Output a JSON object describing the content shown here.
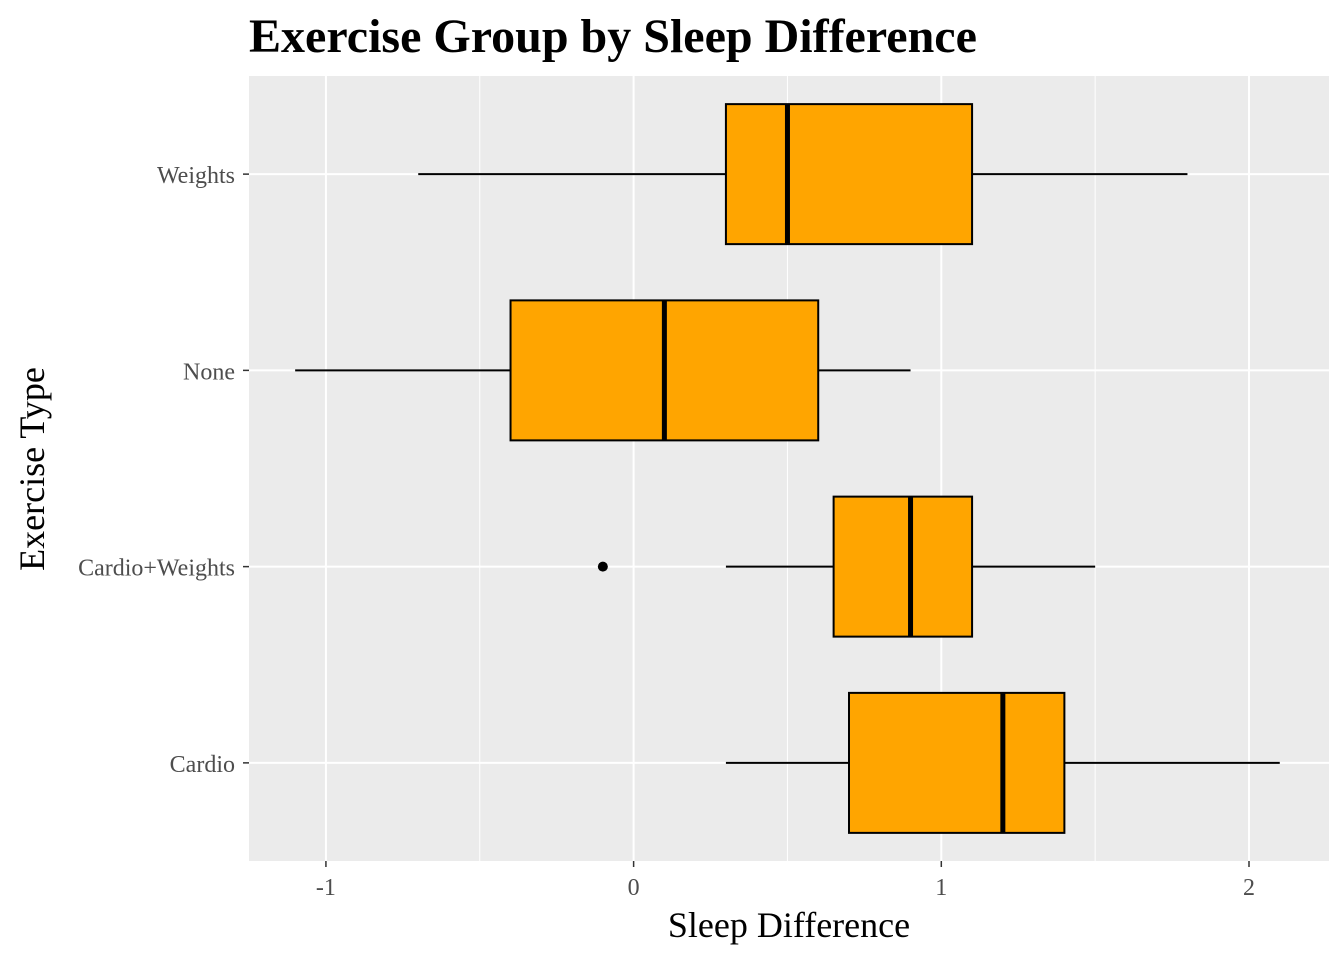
{
  "chart_data": {
    "type": "boxplot",
    "orientation": "horizontal",
    "title": "Exercise Group by Sleep Difference",
    "xlabel": "Sleep Difference",
    "ylabel": "Exercise Type",
    "xlim": [
      -1.25,
      2.26
    ],
    "xticks": [
      -1,
      0,
      1,
      2
    ],
    "xtick_labels": [
      "-1",
      "0",
      "1",
      "2"
    ],
    "categories": [
      "Cardio",
      "Cardio+Weights",
      "None",
      "Weights"
    ],
    "boxes": [
      {
        "category": "Cardio",
        "whisker_low": 0.3,
        "q1": 0.7,
        "median": 1.2,
        "q3": 1.4,
        "whisker_high": 2.1,
        "outliers": []
      },
      {
        "category": "Cardio+Weights",
        "whisker_low": 0.3,
        "q1": 0.65,
        "median": 0.9,
        "q3": 1.1,
        "whisker_high": 1.5,
        "outliers": [
          -0.1
        ]
      },
      {
        "category": "None",
        "whisker_low": -1.1,
        "q1": -0.4,
        "median": 0.1,
        "q3": 0.6,
        "whisker_high": 0.9,
        "outliers": []
      },
      {
        "category": "Weights",
        "whisker_low": -0.7,
        "q1": 0.3,
        "median": 0.5,
        "q3": 1.1,
        "whisker_high": 1.8,
        "outliers": []
      }
    ],
    "fill_color": "#FFA500",
    "panel_color": "#EBEBEB",
    "grid": true
  }
}
